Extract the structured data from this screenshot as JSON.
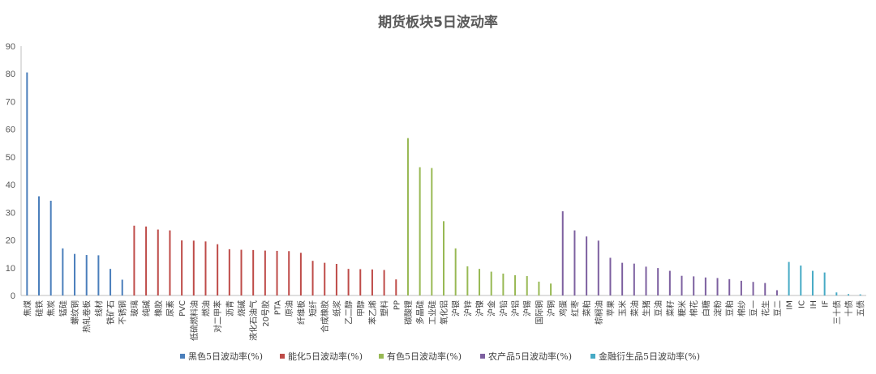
{
  "chart_data": {
    "type": "bar",
    "title": "期货板块5日波动率",
    "xlabel": "",
    "ylabel": "",
    "ylim": [
      0,
      90
    ],
    "yticks": [
      0,
      10,
      20,
      30,
      40,
      50,
      60,
      70,
      80,
      90
    ],
    "grid": false,
    "legend_position": "bottom",
    "series": [
      {
        "name": "黑色5日波动率(%)",
        "color": "#4a7ebb",
        "points": [
          {
            "label": "焦煤",
            "value": 80.5
          },
          {
            "label": "硅铁",
            "value": 35.8
          },
          {
            "label": "焦炭",
            "value": 34.2
          },
          {
            "label": "锰硅",
            "value": 17.0
          },
          {
            "label": "螺纹钢",
            "value": 15.0
          },
          {
            "label": "热轧卷板",
            "value": 14.6
          },
          {
            "label": "线材",
            "value": 14.5
          },
          {
            "label": "铁矿石",
            "value": 9.6
          },
          {
            "label": "不锈钢",
            "value": 5.7
          }
        ]
      },
      {
        "name": "能化5日波动率(%)",
        "color": "#be4b48",
        "points": [
          {
            "label": "玻璃",
            "value": 25.2
          },
          {
            "label": "纯碱",
            "value": 24.9
          },
          {
            "label": "橡胶",
            "value": 23.8
          },
          {
            "label": "尿素",
            "value": 23.5
          },
          {
            "label": "PVC",
            "value": 19.9
          },
          {
            "label": "低硫燃料油",
            "value": 19.8
          },
          {
            "label": "燃油",
            "value": 19.5
          },
          {
            "label": "对二甲苯",
            "value": 18.5
          },
          {
            "label": "沥青",
            "value": 16.7
          },
          {
            "label": "烧碱",
            "value": 16.5
          },
          {
            "label": "液化石油气",
            "value": 16.4
          },
          {
            "label": "20号胶",
            "value": 16.2
          },
          {
            "label": "PTA",
            "value": 16.1
          },
          {
            "label": "原油",
            "value": 16.0
          },
          {
            "label": "纤维板",
            "value": 15.4
          },
          {
            "label": "短纤",
            "value": 12.5
          },
          {
            "label": "合成橡胶",
            "value": 11.8
          },
          {
            "label": "纸浆",
            "value": 11.4
          },
          {
            "label": "乙二醇",
            "value": 9.6
          },
          {
            "label": "甲醇",
            "value": 9.5
          },
          {
            "label": "苯乙烯",
            "value": 9.4
          },
          {
            "label": "塑料",
            "value": 9.2
          },
          {
            "label": "PP",
            "value": 5.8
          }
        ]
      },
      {
        "name": "有色5日波动率(%)",
        "color": "#98b954",
        "points": [
          {
            "label": "碳酸锂",
            "value": 56.8
          },
          {
            "label": "多晶硅",
            "value": 46.3
          },
          {
            "label": "工业硅",
            "value": 46.0
          },
          {
            "label": "氧化铝",
            "value": 26.8
          },
          {
            "label": "沪银",
            "value": 17.0
          },
          {
            "label": "沪锌",
            "value": 10.5
          },
          {
            "label": "沪镍",
            "value": 9.6
          },
          {
            "label": "沪金",
            "value": 8.6
          },
          {
            "label": "沪铅",
            "value": 7.9
          },
          {
            "label": "沪铝",
            "value": 7.3
          },
          {
            "label": "沪锡",
            "value": 7.0
          },
          {
            "label": "国际铜",
            "value": 5.0
          },
          {
            "label": "沪铜",
            "value": 4.3
          }
        ]
      },
      {
        "name": "农产品5日波动率(%)",
        "color": "#7d60a0",
        "points": [
          {
            "label": "鸡蛋",
            "value": 30.4
          },
          {
            "label": "红枣",
            "value": 23.5
          },
          {
            "label": "菜粕",
            "value": 21.3
          },
          {
            "label": "棕榈油",
            "value": 19.8
          },
          {
            "label": "苹果",
            "value": 13.6
          },
          {
            "label": "玉米",
            "value": 11.8
          },
          {
            "label": "菜油",
            "value": 11.5
          },
          {
            "label": "生猪",
            "value": 10.4
          },
          {
            "label": "豆油",
            "value": 9.9
          },
          {
            "label": "菜籽",
            "value": 8.9
          },
          {
            "label": "粳米",
            "value": 7.1
          },
          {
            "label": "棉花",
            "value": 6.9
          },
          {
            "label": "白糖",
            "value": 6.5
          },
          {
            "label": "淀粉",
            "value": 6.3
          },
          {
            "label": "豆粕",
            "value": 5.9
          },
          {
            "label": "棉纱",
            "value": 5.3
          },
          {
            "label": "豆一",
            "value": 4.9
          },
          {
            "label": "花生",
            "value": 4.5
          },
          {
            "label": "豆二",
            "value": 1.9
          }
        ]
      },
      {
        "name": "金融衍生品5日波动率(%)",
        "color": "#46aac5",
        "points": [
          {
            "label": "IM",
            "value": 12.1
          },
          {
            "label": "IC",
            "value": 10.8
          },
          {
            "label": "IH",
            "value": 8.9
          },
          {
            "label": "IF",
            "value": 8.3
          },
          {
            "label": "三十债",
            "value": 1.1
          },
          {
            "label": "十债",
            "value": 0.5
          },
          {
            "label": "五债",
            "value": 0.4
          }
        ]
      }
    ]
  }
}
